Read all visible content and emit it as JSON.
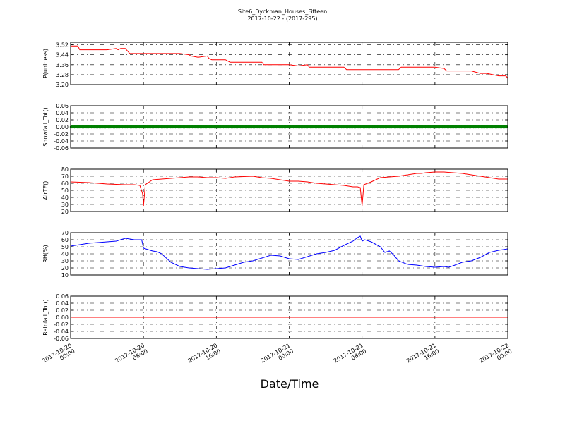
{
  "figure": {
    "title_line1": "Site6_Dyckman_Houses_Fifteen",
    "title_line2": "2017-10-22 - (2017-295)",
    "xlabel": "Date/Time"
  },
  "x_ticks": [
    {
      "line1": "2017-10-20",
      "line2": "00:00"
    },
    {
      "line1": "2017-10-20",
      "line2": "08:00"
    },
    {
      "line1": "2017-10-20",
      "line2": "16:00"
    },
    {
      "line1": "2017-10-21",
      "line2": "00:00"
    },
    {
      "line1": "2017-10-21",
      "line2": "08:00"
    },
    {
      "line1": "2017-10-21",
      "line2": "16:00"
    },
    {
      "line1": "2017-10-22",
      "line2": "00:00"
    }
  ],
  "colors": {
    "pressure": "#ff0000",
    "snowfall": "#008000",
    "airtemp": "#ff0000",
    "rh": "#0000ff",
    "rainfall": "#ff0000"
  },
  "chart_data": [
    {
      "type": "line",
      "ylabel": "P(unitless)",
      "ylim": [
        3.2,
        3.54
      ],
      "yticks": [
        "3.20",
        "3.28",
        "3.36",
        "3.44",
        "3.52"
      ],
      "x_hours": [
        0,
        0.8,
        1,
        2,
        3,
        4,
        5,
        5.2,
        5.5,
        6,
        6.5,
        8,
        10,
        12,
        13,
        13.2,
        14,
        15,
        15.2,
        15.5,
        17,
        17.5,
        18,
        19,
        20,
        21,
        21.2,
        22,
        24,
        25,
        26,
        26.2,
        27,
        27.5,
        28,
        30,
        30.3,
        31,
        32,
        32.2,
        35,
        36,
        36.3,
        37,
        38,
        38.3,
        40,
        41,
        41.3,
        42,
        44,
        45,
        45.3,
        45.7,
        47,
        47.8,
        48
      ],
      "values": [
        3.51,
        3.51,
        3.48,
        3.48,
        3.48,
        3.48,
        3.49,
        3.48,
        3.49,
        3.49,
        3.45,
        3.45,
        3.45,
        3.45,
        3.44,
        3.43,
        3.42,
        3.43,
        3.41,
        3.4,
        3.4,
        3.38,
        3.38,
        3.38,
        3.38,
        3.38,
        3.36,
        3.36,
        3.36,
        3.35,
        3.36,
        3.34,
        3.34,
        3.34,
        3.34,
        3.34,
        3.32,
        3.32,
        3.32,
        3.32,
        3.32,
        3.32,
        3.34,
        3.34,
        3.34,
        3.34,
        3.34,
        3.33,
        3.31,
        3.31,
        3.31,
        3.29,
        3.29,
        3.29,
        3.27,
        3.27,
        3.25
      ]
    },
    {
      "type": "line",
      "ylabel": "Snowfall_Tot()",
      "ylim": [
        -0.06,
        0.06
      ],
      "yticks": [
        "-0.06",
        "-0.04",
        "-0.02",
        "0.00",
        "0.02",
        "0.04",
        "0.06"
      ],
      "x_hours": [
        0,
        48
      ],
      "values": [
        0.0,
        0.0
      ],
      "marker": "dot"
    },
    {
      "type": "line",
      "ylabel": "AirTF()",
      "ylim": [
        20,
        80
      ],
      "yticks": [
        "20",
        "30",
        "40",
        "50",
        "60",
        "70",
        "80"
      ],
      "x_hours": [
        0,
        2,
        4,
        6,
        7,
        7.6,
        7.9,
        8.0,
        8.2,
        9,
        10,
        11,
        12,
        13,
        14,
        15,
        16,
        17,
        17.5,
        18,
        20,
        21,
        22,
        23,
        24,
        25,
        26,
        27,
        28,
        29,
        30,
        31,
        31.5,
        31.8,
        32.0,
        32.2,
        33,
        34,
        35,
        36,
        37,
        38,
        38.5,
        39,
        40,
        41,
        42,
        43,
        44,
        45,
        46,
        47,
        48
      ],
      "values": [
        62,
        61,
        59,
        58,
        58,
        57,
        45,
        28,
        58,
        65,
        66,
        67,
        68,
        69,
        69,
        68,
        68,
        67,
        68,
        69,
        70,
        68,
        67,
        65,
        63,
        63,
        62,
        60,
        59,
        58,
        57,
        55,
        55,
        54,
        28,
        58,
        62,
        68,
        69,
        70,
        72,
        74,
        74,
        75,
        76,
        76,
        75,
        74,
        72,
        70,
        68,
        66,
        66
      ]
    },
    {
      "type": "line",
      "ylabel": "RH(%)",
      "ylim": [
        10,
        70
      ],
      "yticks": [
        "10",
        "20",
        "30",
        "40",
        "50",
        "60",
        "70"
      ],
      "x_hours": [
        0,
        1,
        2,
        3,
        4,
        5,
        5.5,
        6,
        7,
        7.8,
        8.0,
        8.5,
        9,
        9.5,
        10,
        11,
        12,
        13,
        14,
        15,
        16,
        17,
        18,
        19,
        20,
        21,
        22,
        23,
        24,
        25,
        26,
        27,
        28,
        29,
        30,
        31,
        31.5,
        31.8,
        32.0,
        32.3,
        33,
        34,
        34.5,
        35,
        35.5,
        36,
        37,
        38,
        39,
        40,
        41,
        41.5,
        42,
        43,
        44,
        45,
        46,
        47,
        48
      ],
      "values": [
        51,
        53,
        55,
        56,
        57,
        58,
        60,
        62,
        60,
        60,
        48,
        46,
        44,
        43,
        40,
        28,
        22,
        20,
        19,
        18,
        19,
        20,
        24,
        28,
        30,
        34,
        38,
        37,
        33,
        32,
        36,
        40,
        42,
        45,
        52,
        58,
        63,
        65,
        58,
        60,
        57,
        50,
        42,
        44,
        38,
        30,
        25,
        24,
        22,
        21,
        22,
        21,
        23,
        28,
        30,
        35,
        42,
        45,
        47
      ]
    },
    {
      "type": "line",
      "ylabel": "Rainfall_Tot()",
      "ylim": [
        -0.06,
        0.06
      ],
      "yticks": [
        "-0.06",
        "-0.04",
        "-0.02",
        "0.00",
        "0.02",
        "0.04",
        "0.06"
      ],
      "x_hours": [
        0,
        48
      ],
      "values": [
        0.0,
        0.0
      ]
    }
  ]
}
